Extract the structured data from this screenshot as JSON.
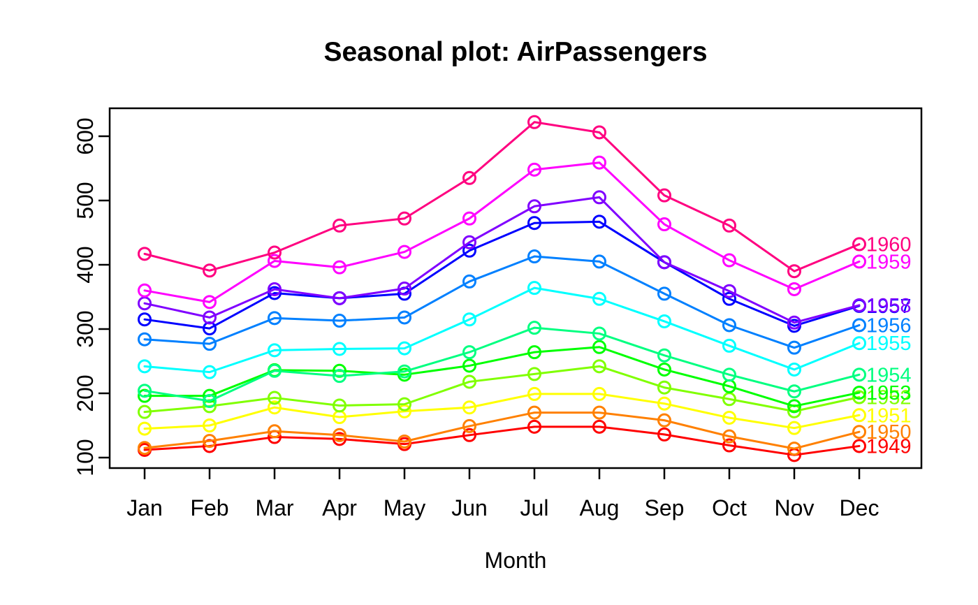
{
  "title": "Seasonal plot: AirPassengers",
  "xlabel": "Month",
  "chart_data": {
    "type": "line",
    "title": "Seasonal plot: AirPassengers",
    "xlabel": "Month",
    "ylabel": "",
    "categories": [
      "Jan",
      "Feb",
      "Mar",
      "Apr",
      "May",
      "Jun",
      "Jul",
      "Aug",
      "Sep",
      "Oct",
      "Nov",
      "Dec"
    ],
    "yticks": [
      "100",
      "200",
      "300",
      "400",
      "500",
      "600"
    ],
    "ylim": [
      83,
      643
    ],
    "grid": false,
    "marker": "open-circle",
    "background": "#FFFFFF",
    "axis_color": "#000000",
    "legend_position": "year-labels-right-of-december",
    "series": [
      {
        "name": "1949",
        "color": "#FF0000",
        "values": [
          112,
          118,
          132,
          129,
          121,
          135,
          148,
          148,
          136,
          119,
          104,
          118
        ]
      },
      {
        "name": "1950",
        "color": "#FF8000",
        "values": [
          115,
          126,
          141,
          135,
          125,
          149,
          170,
          170,
          158,
          133,
          114,
          140
        ]
      },
      {
        "name": "1951",
        "color": "#FFFF00",
        "values": [
          145,
          150,
          178,
          163,
          172,
          178,
          199,
          199,
          184,
          162,
          146,
          166
        ]
      },
      {
        "name": "1952",
        "color": "#80FF00",
        "values": [
          171,
          180,
          193,
          181,
          183,
          218,
          230,
          242,
          209,
          191,
          172,
          194
        ]
      },
      {
        "name": "1953",
        "color": "#00FF00",
        "values": [
          196,
          196,
          236,
          235,
          229,
          243,
          264,
          272,
          237,
          211,
          180,
          201
        ]
      },
      {
        "name": "1954",
        "color": "#00FF80",
        "values": [
          204,
          188,
          235,
          227,
          234,
          264,
          302,
          293,
          259,
          229,
          203,
          229
        ]
      },
      {
        "name": "1955",
        "color": "#00FFFF",
        "values": [
          242,
          233,
          267,
          269,
          270,
          315,
          364,
          347,
          312,
          274,
          237,
          278
        ]
      },
      {
        "name": "1956",
        "color": "#0080FF",
        "values": [
          284,
          277,
          317,
          313,
          318,
          374,
          413,
          405,
          355,
          306,
          271,
          306
        ]
      },
      {
        "name": "1957",
        "color": "#0000FF",
        "values": [
          315,
          301,
          356,
          348,
          355,
          422,
          465,
          467,
          404,
          347,
          305,
          336
        ]
      },
      {
        "name": "1958",
        "color": "#8000FF",
        "values": [
          340,
          318,
          362,
          348,
          363,
          435,
          491,
          505,
          404,
          359,
          310,
          337
        ]
      },
      {
        "name": "1959",
        "color": "#FF00FF",
        "values": [
          360,
          342,
          406,
          396,
          420,
          472,
          548,
          559,
          463,
          407,
          362,
          405
        ]
      },
      {
        "name": "1960",
        "color": "#FF0080",
        "values": [
          417,
          391,
          419,
          461,
          472,
          535,
          622,
          606,
          508,
          461,
          390,
          432
        ]
      }
    ]
  }
}
